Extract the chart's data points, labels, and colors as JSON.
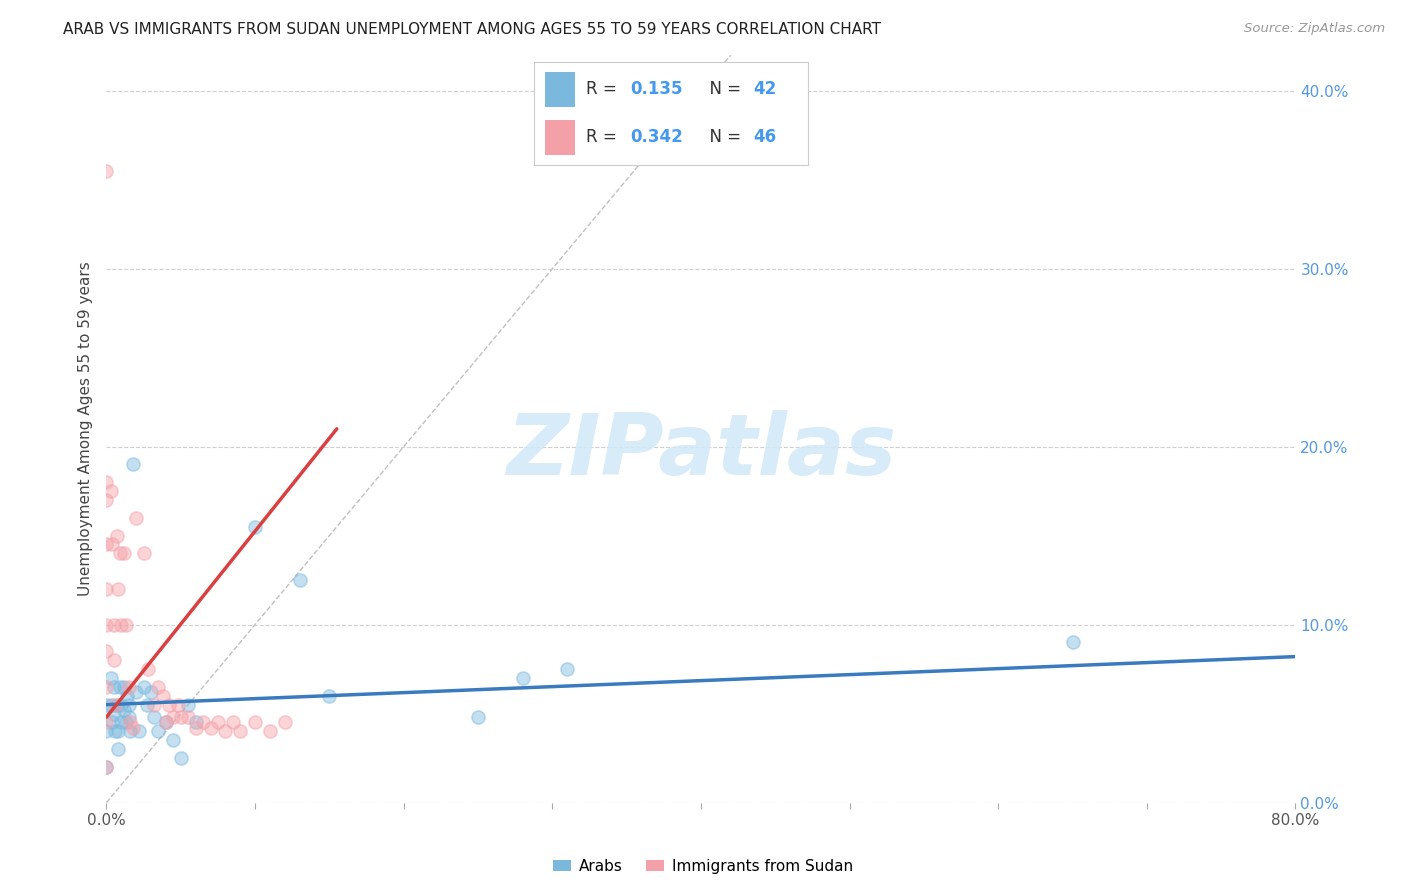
{
  "title": "ARAB VS IMMIGRANTS FROM SUDAN UNEMPLOYMENT AMONG AGES 55 TO 59 YEARS CORRELATION CHART",
  "source": "Source: ZipAtlas.com",
  "ylabel": "Unemployment Among Ages 55 to 59 years",
  "xlim": [
    0.0,
    0.8
  ],
  "ylim": [
    0.0,
    0.42
  ],
  "yticks": [
    0.0,
    0.1,
    0.2,
    0.3,
    0.4
  ],
  "xticks": [
    0.0,
    0.1,
    0.2,
    0.3,
    0.4,
    0.5,
    0.6,
    0.7,
    0.8
  ],
  "background_color": "#ffffff",
  "grid_color": "#d0d0d0",
  "watermark_text": "ZIPatlas",
  "watermark_color": "#d0e8f8",
  "legend_R1": "0.135",
  "legend_N1": "42",
  "legend_R2": "0.342",
  "legend_N2": "46",
  "arab_color": "#7ab8de",
  "sudan_color": "#f4a0a8",
  "arab_edge_color": "#7ab8de",
  "sudan_edge_color": "#f4a0a8",
  "arab_trend_color": "#3a7bbf",
  "sudan_trend_color": "#d94040",
  "dashed_line_color": "#c0c0c0",
  "arab_points_x": [
    0.0,
    0.0,
    0.0,
    0.003,
    0.003,
    0.004,
    0.005,
    0.005,
    0.006,
    0.007,
    0.008,
    0.008,
    0.009,
    0.01,
    0.01,
    0.012,
    0.012,
    0.013,
    0.014,
    0.015,
    0.015,
    0.016,
    0.018,
    0.02,
    0.022,
    0.025,
    0.027,
    0.03,
    0.032,
    0.035,
    0.04,
    0.045,
    0.05,
    0.055,
    0.06,
    0.1,
    0.13,
    0.15,
    0.25,
    0.28,
    0.31,
    0.65
  ],
  "arab_points_y": [
    0.055,
    0.04,
    0.02,
    0.07,
    0.055,
    0.045,
    0.065,
    0.05,
    0.04,
    0.055,
    0.04,
    0.03,
    0.065,
    0.055,
    0.045,
    0.065,
    0.052,
    0.045,
    0.06,
    0.055,
    0.048,
    0.04,
    0.19,
    0.062,
    0.04,
    0.065,
    0.055,
    0.062,
    0.048,
    0.04,
    0.045,
    0.035,
    0.025,
    0.055,
    0.045,
    0.155,
    0.125,
    0.06,
    0.048,
    0.07,
    0.075,
    0.09
  ],
  "sudan_points_x": [
    0.0,
    0.0,
    0.0,
    0.0,
    0.0,
    0.0,
    0.0,
    0.0,
    0.0,
    0.0,
    0.003,
    0.004,
    0.005,
    0.005,
    0.006,
    0.007,
    0.008,
    0.009,
    0.01,
    0.012,
    0.013,
    0.015,
    0.016,
    0.018,
    0.02,
    0.025,
    0.028,
    0.032,
    0.035,
    0.038,
    0.04,
    0.042,
    0.045,
    0.048,
    0.05,
    0.055,
    0.06,
    0.065,
    0.07,
    0.075,
    0.08,
    0.085,
    0.09,
    0.1,
    0.11,
    0.12
  ],
  "sudan_points_y": [
    0.355,
    0.18,
    0.17,
    0.145,
    0.12,
    0.1,
    0.085,
    0.065,
    0.045,
    0.02,
    0.175,
    0.145,
    0.1,
    0.08,
    0.055,
    0.15,
    0.12,
    0.14,
    0.1,
    0.14,
    0.1,
    0.065,
    0.045,
    0.042,
    0.16,
    0.14,
    0.075,
    0.055,
    0.065,
    0.06,
    0.045,
    0.055,
    0.048,
    0.055,
    0.048,
    0.048,
    0.042,
    0.045,
    0.042,
    0.045,
    0.04,
    0.045,
    0.04,
    0.045,
    0.04,
    0.045
  ],
  "arab_trend_x": [
    0.0,
    0.8
  ],
  "arab_trend_y": [
    0.055,
    0.082
  ],
  "sudan_trend_x": [
    0.0,
    0.155
  ],
  "sudan_trend_y": [
    0.048,
    0.21
  ],
  "dashed_line_x": [
    0.0,
    0.42
  ],
  "dashed_line_y": [
    0.0,
    0.42
  ],
  "marker_size": 90,
  "marker_alpha": 0.45,
  "marker_linewidth": 1.2
}
